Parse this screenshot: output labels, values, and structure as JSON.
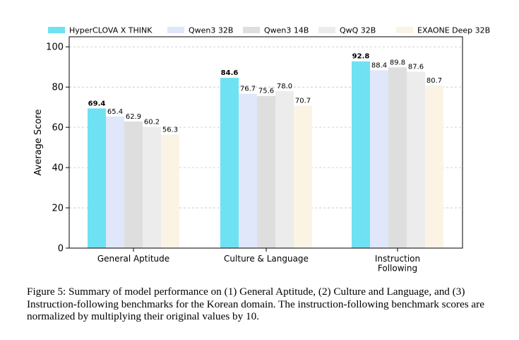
{
  "chart_data": {
    "type": "bar",
    "ylabel": "Average Score",
    "ylim": [
      0,
      105
    ],
    "yticks": [
      0,
      20,
      40,
      60,
      80,
      100
    ],
    "grid": "horizontal-dashed",
    "legend_position": "top",
    "categories": [
      {
        "lines": [
          "General Aptitude"
        ]
      },
      {
        "lines": [
          "Culture & Language"
        ]
      },
      {
        "lines": [
          "Instruction",
          "Following"
        ]
      }
    ],
    "series": [
      {
        "name": "HyperCLOVA X THINK",
        "color": "#6ee2f2",
        "values": [
          69.4,
          84.6,
          92.8
        ],
        "labels": [
          "69.4",
          "84.6",
          "92.8"
        ]
      },
      {
        "name": "Qwen3 32B",
        "color": "#e0e7fb",
        "values": [
          65.4,
          76.7,
          88.4
        ],
        "labels": [
          "65.4",
          "76.7",
          "88.4"
        ]
      },
      {
        "name": "Qwen3 14B",
        "color": "#dedede",
        "values": [
          62.9,
          75.6,
          89.8
        ],
        "labels": [
          "62.9",
          "75.6",
          "89.8"
        ]
      },
      {
        "name": "QwQ 32B",
        "color": "#ececec",
        "values": [
          60.2,
          78.0,
          87.6
        ],
        "labels": [
          "60.2",
          "78.0",
          "87.6"
        ]
      },
      {
        "name": "EXAONE Deep 32B",
        "color": "#fbf4e4",
        "values": [
          56.3,
          70.7,
          80.7
        ],
        "labels": [
          "56.3",
          "70.7",
          "80.7"
        ]
      }
    ]
  },
  "caption": "Figure 5: Summary of model performance on (1) General Aptitude, (2) Culture and Language, and (3) Instruction-following benchmarks for the Korean domain. The instruction-following benchmark scores are normalized by multiplying their original values by 10."
}
